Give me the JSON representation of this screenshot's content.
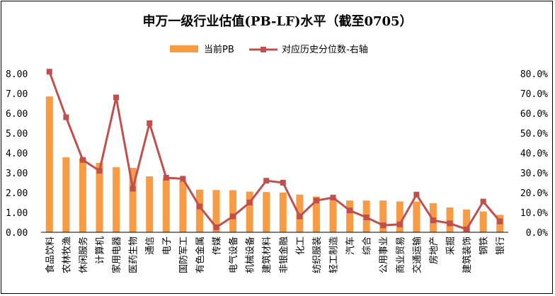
{
  "chart_data": {
    "type": "bar",
    "title": "申万一级行业估值(PB-LF)水平（截至0705）",
    "categories": [
      "食品饮料",
      "农林牧渔",
      "休闲服务",
      "计算机",
      "家用电器",
      "医药生物",
      "通信",
      "电子",
      "国防军工",
      "有色金属",
      "传媒",
      "电气设备",
      "机械设备",
      "建筑材料",
      "非银金融",
      "化工",
      "纺织服装",
      "轻工制造",
      "汽车",
      "综合",
      "公用事业",
      "商业贸易",
      "交通运输",
      "房地产",
      "采掘",
      "建筑装饰",
      "钢铁",
      "银行"
    ],
    "series": [
      {
        "name": "当前PB",
        "type": "bar",
        "axis": "left",
        "color": "#F79B45",
        "values": [
          6.85,
          3.78,
          3.72,
          3.5,
          3.28,
          3.25,
          2.82,
          2.72,
          2.6,
          2.15,
          2.13,
          2.12,
          2.05,
          2.03,
          2.0,
          1.9,
          1.8,
          1.75,
          1.6,
          1.6,
          1.6,
          1.55,
          1.55,
          1.47,
          1.25,
          1.15,
          1.05,
          0.88
        ]
      },
      {
        "name": "对应历史分位数-右轴",
        "type": "line",
        "axis": "right",
        "color": "#C0504D",
        "values": [
          0.81,
          0.58,
          0.365,
          0.31,
          0.68,
          0.22,
          0.55,
          0.275,
          0.27,
          0.13,
          0.025,
          0.08,
          0.15,
          0.26,
          0.25,
          0.08,
          0.16,
          0.175,
          0.11,
          0.075,
          0.035,
          0.04,
          0.19,
          0.06,
          0.045,
          0.015,
          0.155,
          0.055
        ]
      }
    ],
    "left_axis": {
      "min": 0,
      "max": 8,
      "step": 1,
      "tick_labels": [
        "0.00",
        "1.00",
        "2.00",
        "3.00",
        "4.00",
        "5.00",
        "6.00",
        "7.00",
        "8.00"
      ]
    },
    "right_axis": {
      "min": 0,
      "max": 0.8,
      "step": 0.1,
      "tick_labels": [
        "0.0%",
        "10.0%",
        "20.0%",
        "30.0%",
        "40.0%",
        "50.0%",
        "60.0%",
        "70.0%",
        "80.0%"
      ]
    },
    "legend_position": "top-center",
    "grid": false
  }
}
